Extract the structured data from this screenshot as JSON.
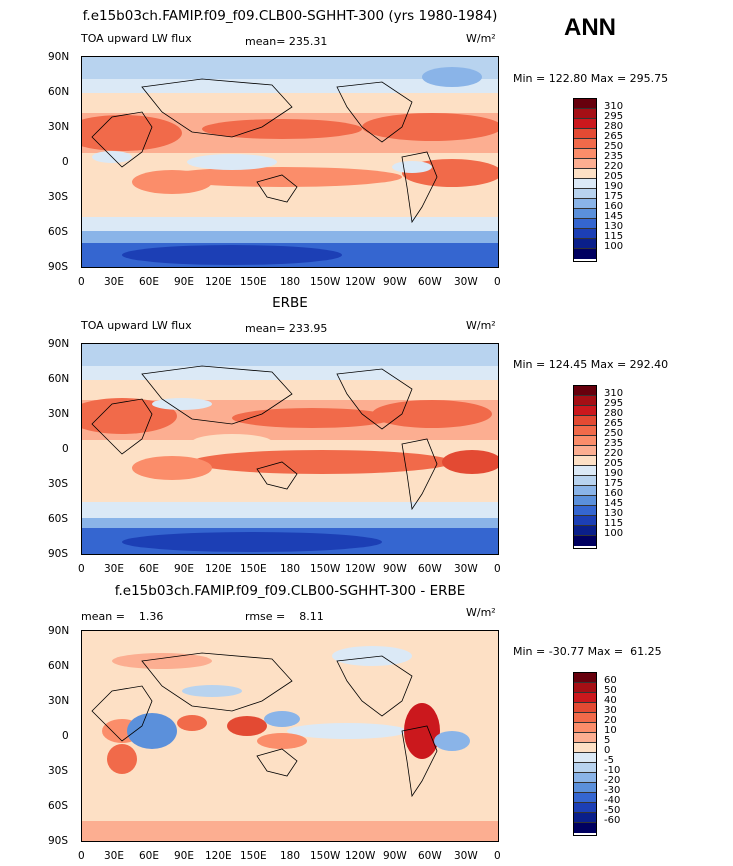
{
  "season": "ANN",
  "units_label": "W/m²",
  "panels": [
    {
      "title": "f.e15b03ch.FAMIP.f09_f09.CLB00-SGHHT-300 (yrs 1980-1984)",
      "left_label": "TOA upward LW flux",
      "mean_label": "mean= 235.31",
      "minmax": "Min = 122.80 Max = 295.75",
      "color_levels": [
        "310",
        "295",
        "280",
        "265",
        "250",
        "235",
        "220",
        "205",
        "190",
        "175",
        "160",
        "145",
        "130",
        "115",
        "100"
      ],
      "colors": [
        "#67000d",
        "#a50f15",
        "#cb181d",
        "#e34a33",
        "#f16a4a",
        "#fb8d6a",
        "#fcae91",
        "#fde0c5",
        "#dbe9f6",
        "#b8d3ef",
        "#8ab4e8",
        "#5b90db",
        "#3566d0",
        "#1c3fb5",
        "#0a1f8a",
        "#000060"
      ]
    },
    {
      "title": "ERBE",
      "left_label": "TOA upward LW flux",
      "mean_label": "mean= 233.95",
      "minmax": "Min = 124.45 Max = 292.40",
      "color_levels": [
        "310",
        "295",
        "280",
        "265",
        "250",
        "235",
        "220",
        "205",
        "190",
        "175",
        "160",
        "145",
        "130",
        "115",
        "100"
      ],
      "colors": [
        "#67000d",
        "#a50f15",
        "#cb181d",
        "#e34a33",
        "#f16a4a",
        "#fb8d6a",
        "#fcae91",
        "#fde0c5",
        "#dbe9f6",
        "#b8d3ef",
        "#8ab4e8",
        "#5b90db",
        "#3566d0",
        "#1c3fb5",
        "#0a1f8a",
        "#000060"
      ]
    },
    {
      "title": "f.e15b03ch.FAMIP.f09_f09.CLB00-SGHHT-300 - ERBE",
      "left_label": "mean =    1.36",
      "mean_label": "rmse =    8.11",
      "minmax": "Min = -30.77 Max =  61.25",
      "color_levels": [
        "60",
        "50",
        "40",
        "30",
        "20",
        "10",
        "5",
        "0",
        "-5",
        "-10",
        "-20",
        "-30",
        "-40",
        "-50",
        "-60"
      ],
      "colors": [
        "#67000d",
        "#a50f15",
        "#cb181d",
        "#e34a33",
        "#f16a4a",
        "#fb8d6a",
        "#fcae91",
        "#fde0c5",
        "#dbe9f6",
        "#b8d3ef",
        "#8ab4e8",
        "#5b90db",
        "#3566d0",
        "#1c3fb5",
        "#0a1f8a",
        "#000060"
      ]
    }
  ],
  "lat_ticks": [
    "90N",
    "60N",
    "30N",
    "0",
    "30S",
    "60S",
    "90S"
  ],
  "lon_ticks": [
    "0",
    "30E",
    "60E",
    "90E",
    "120E",
    "150E",
    "180",
    "150W",
    "120W",
    "90W",
    "60W",
    "30W",
    "0"
  ]
}
